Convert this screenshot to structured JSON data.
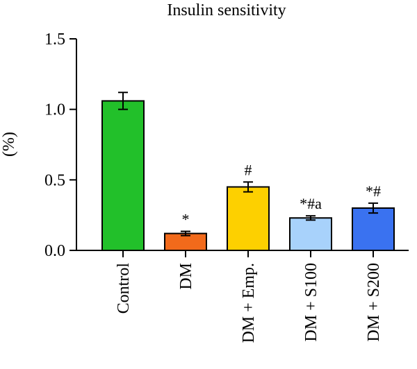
{
  "chart_data": {
    "type": "bar",
    "title": "Insulin sensitivity",
    "ylabel": "(%)",
    "xlabel": "",
    "ylim": [
      0,
      1.5
    ],
    "yticks": [
      "0.0",
      "0.5",
      "1.0",
      "1.5"
    ],
    "ytick_values": [
      0,
      0.5,
      1.0,
      1.5
    ],
    "categories": [
      "Control",
      "DM",
      "DM + Emp.",
      "DM + S100",
      "DM + S200"
    ],
    "values": [
      1.06,
      0.12,
      0.45,
      0.23,
      0.3
    ],
    "errors": [
      0.06,
      0.015,
      0.035,
      0.015,
      0.035
    ],
    "colors": [
      "#22c02a",
      "#f26a1b",
      "#fdd000",
      "#a8d2fb",
      "#3a72f0"
    ],
    "annotations": [
      "",
      "*",
      "#",
      "*#a",
      "*#"
    ],
    "grid": false
  }
}
